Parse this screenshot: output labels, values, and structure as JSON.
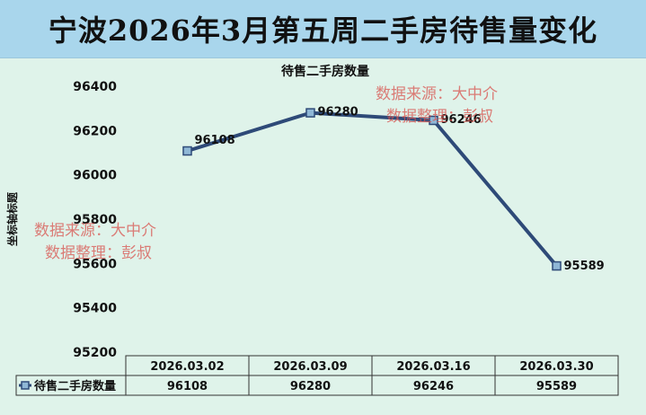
{
  "page_title": "宁波2026年3月第五周二手房待售量变化",
  "colors": {
    "line": "#2e4a78",
    "marker_fill": "#8fb7d6",
    "title_bg": "#a9d6ec",
    "bg": "#dff3ea",
    "watermark": "#d9534f"
  },
  "chart_data": {
    "type": "line",
    "title": "待售二手房数量",
    "ylabel": "坐标轴标题",
    "xlabel": "",
    "categories": [
      "2026.03.02",
      "2026.03.09",
      "2026.03.16",
      "2026.03.30"
    ],
    "series": [
      {
        "name": "待售二手房数量",
        "values": [
          96108,
          96280,
          96246,
          95589
        ]
      }
    ],
    "ylim": [
      95200,
      96400
    ],
    "yticks": [
      95200,
      95400,
      95600,
      95800,
      96000,
      96200,
      96400
    ],
    "grid": false,
    "legend": "data-table",
    "data_table": true
  },
  "watermarks": [
    {
      "line1": "数据来源：大中介",
      "line2": "数据整理：彭叔"
    },
    {
      "line1": "数据来源：大中介",
      "line2": "数据整理：彭叔"
    }
  ]
}
